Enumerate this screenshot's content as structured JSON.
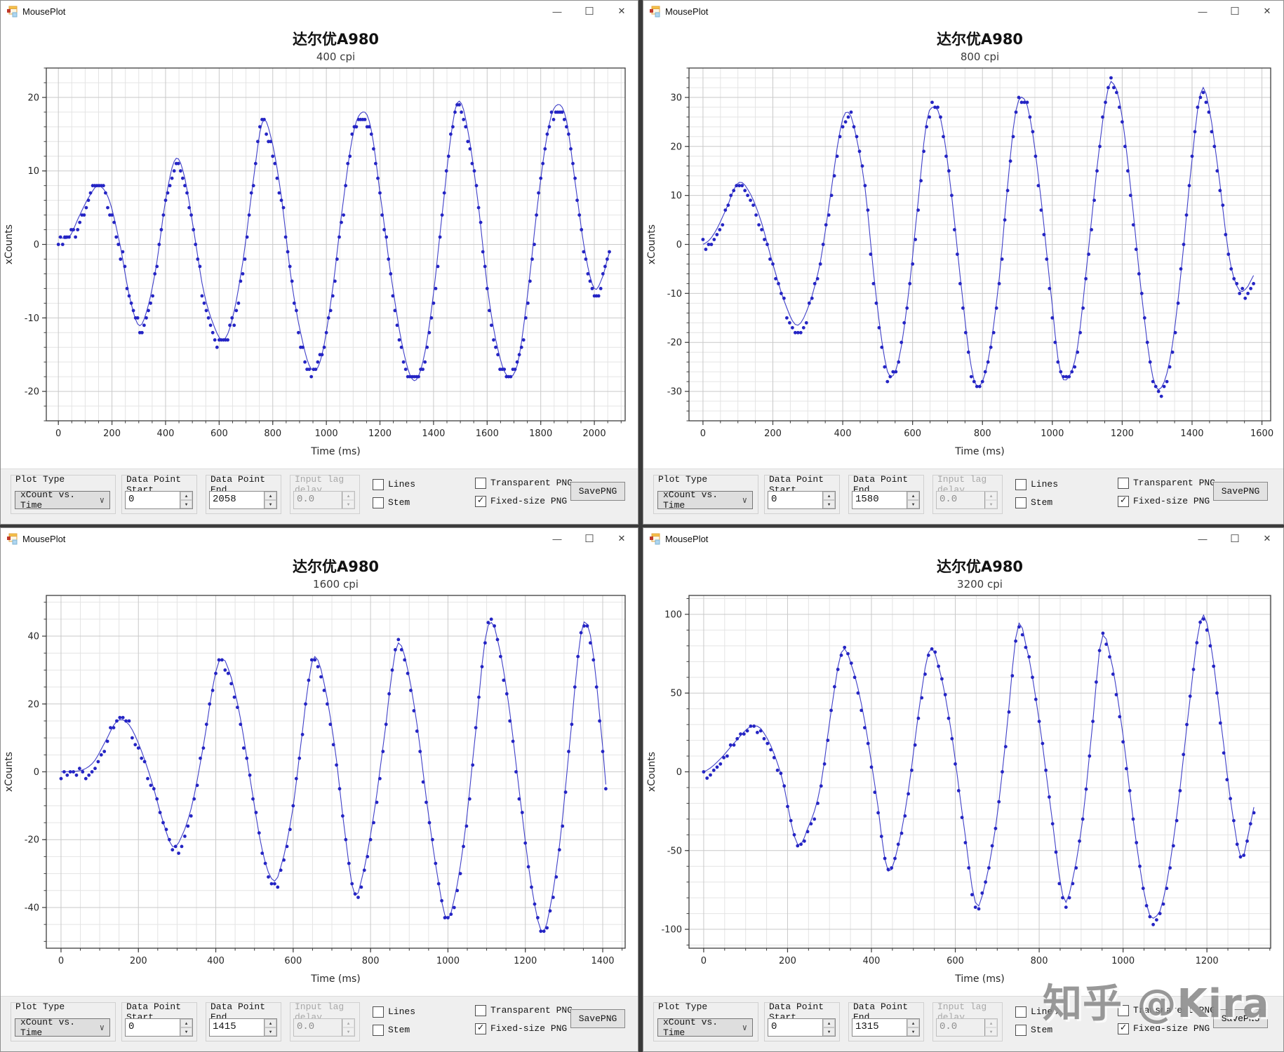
{
  "app": {
    "window_title": "MousePlot",
    "window_controls": {
      "minimize": "—",
      "maximize": "☐",
      "close": "✕"
    }
  },
  "glyphs": {
    "check": "✓",
    "chevron_down": "∨",
    "spin_up": "▲",
    "spin_down": "▼"
  },
  "colors": {
    "series_blue": "#2424c4",
    "line_blue": "#4040c8",
    "grid_major": "#c9c9c9",
    "grid_minor": "#e4e4e4",
    "frame": "#3d3d3d",
    "controlbar_bg": "#efefef"
  },
  "controls": {
    "plot_type": {
      "group_label": "Plot Type",
      "value": "xCount vs. Time"
    },
    "data_point_start": {
      "group_label_line1": "Data Point",
      "group_label_line2": "Start"
    },
    "data_point_end": {
      "group_label_line1": "Data Point",
      "group_label_line2": "End"
    },
    "input_lag": {
      "group_label_line1": "Input lag",
      "group_label_line2": "delay"
    },
    "checkboxes": {
      "lines": {
        "label": "Lines",
        "checked": false
      },
      "stem": {
        "label": "Stem",
        "checked": false
      },
      "transparent_png": {
        "label": "Transparent PNG",
        "checked": false
      },
      "fixed_size_png": {
        "label": "Fixed-size PNG",
        "checked": true
      }
    },
    "save_button": "SavePNG"
  },
  "watermark": {
    "text": "知乎 @Kira"
  },
  "windows": [
    {
      "title": "达尔优A980",
      "subtitle": "400 cpi",
      "data_point_start": "0",
      "data_point_end": "2058",
      "input_lag": "0.0"
    },
    {
      "title": "达尔优A980",
      "subtitle": "800 cpi",
      "data_point_start": "0",
      "data_point_end": "1580",
      "input_lag": "0.0"
    },
    {
      "title": "达尔优A980",
      "subtitle": "1600 cpi",
      "data_point_start": "0",
      "data_point_end": "1415",
      "input_lag": "0.0"
    },
    {
      "title": "达尔优A980",
      "subtitle": "3200 cpi",
      "data_point_start": "0",
      "data_point_end": "1315",
      "input_lag": "0.0"
    }
  ],
  "chart_data": [
    {
      "type": "line",
      "marker": "circle",
      "title": "达尔优A980",
      "subtitle": "400 cpi",
      "xlabel": "Time (ms)",
      "ylabel": "xCounts",
      "xlim": [
        -45,
        2115
      ],
      "ylim": [
        -24,
        24
      ],
      "xticks": [
        0,
        200,
        400,
        600,
        800,
        1000,
        1200,
        1400,
        1600,
        1800,
        2000
      ],
      "yticks": [
        -20,
        -10,
        0,
        10,
        20
      ],
      "x_minor_step": 50,
      "y_minor_step": 2,
      "sample_interval_ms": 8,
      "noise_amplitude": 0.55,
      "keypoints": [
        [
          0,
          1
        ],
        [
          40,
          1
        ],
        [
          80,
          4
        ],
        [
          115,
          6.5
        ],
        [
          150,
          8
        ],
        [
          190,
          6
        ],
        [
          230,
          0
        ],
        [
          265,
          -7
        ],
        [
          300,
          -11
        ],
        [
          330,
          -9
        ],
        [
          365,
          -3
        ],
        [
          400,
          6
        ],
        [
          435,
          11.5
        ],
        [
          465,
          10
        ],
        [
          500,
          3
        ],
        [
          540,
          -6
        ],
        [
          580,
          -11
        ],
        [
          615,
          -13
        ],
        [
          650,
          -10
        ],
        [
          690,
          -2
        ],
        [
          725,
          8
        ],
        [
          760,
          16.5
        ],
        [
          790,
          15
        ],
        [
          830,
          7
        ],
        [
          870,
          -5
        ],
        [
          910,
          -13
        ],
        [
          945,
          -17
        ],
        [
          980,
          -15.5
        ],
        [
          1020,
          -7
        ],
        [
          1060,
          5
        ],
        [
          1100,
          15
        ],
        [
          1135,
          18
        ],
        [
          1165,
          16
        ],
        [
          1200,
          7
        ],
        [
          1240,
          -4
        ],
        [
          1285,
          -14
        ],
        [
          1325,
          -18.5
        ],
        [
          1360,
          -16
        ],
        [
          1395,
          -8
        ],
        [
          1435,
          5
        ],
        [
          1470,
          16
        ],
        [
          1495,
          19.5
        ],
        [
          1525,
          16
        ],
        [
          1565,
          6
        ],
        [
          1605,
          -7
        ],
        [
          1645,
          -15
        ],
        [
          1680,
          -18
        ],
        [
          1715,
          -16
        ],
        [
          1750,
          -7
        ],
        [
          1790,
          6
        ],
        [
          1830,
          16
        ],
        [
          1862,
          19
        ],
        [
          1895,
          17
        ],
        [
          1930,
          8
        ],
        [
          1965,
          -1
        ],
        [
          2000,
          -6
        ],
        [
          2030,
          -4.5
        ],
        [
          2058,
          -1
        ]
      ]
    },
    {
      "type": "line",
      "marker": "circle",
      "title": "达尔优A980",
      "subtitle": "800 cpi",
      "xlabel": "Time (ms)",
      "ylabel": "xCounts",
      "xlim": [
        -40,
        1625
      ],
      "ylim": [
        -36,
        36
      ],
      "xticks": [
        0,
        200,
        400,
        600,
        800,
        1000,
        1200,
        1400,
        1600
      ],
      "yticks": [
        -30,
        -20,
        -10,
        0,
        10,
        20,
        30
      ],
      "x_minor_step": 50,
      "y_minor_step": 2,
      "sample_interval_ms": 8,
      "noise_amplitude": 0.7,
      "keypoints": [
        [
          0,
          0
        ],
        [
          30,
          2
        ],
        [
          65,
          7
        ],
        [
          100,
          12.5
        ],
        [
          130,
          11
        ],
        [
          165,
          5
        ],
        [
          200,
          -4
        ],
        [
          235,
          -12
        ],
        [
          268,
          -16.5
        ],
        [
          300,
          -13
        ],
        [
          335,
          -4
        ],
        [
          365,
          10
        ],
        [
          395,
          24
        ],
        [
          415,
          27
        ],
        [
          435,
          23
        ],
        [
          465,
          11
        ],
        [
          490,
          -7
        ],
        [
          515,
          -21
        ],
        [
          535,
          -27
        ],
        [
          562,
          -23
        ],
        [
          590,
          -9
        ],
        [
          618,
          10
        ],
        [
          640,
          25
        ],
        [
          660,
          28
        ],
        [
          682,
          25
        ],
        [
          710,
          11
        ],
        [
          740,
          -9
        ],
        [
          768,
          -25
        ],
        [
          790,
          -29
        ],
        [
          818,
          -23
        ],
        [
          848,
          -7
        ],
        [
          875,
          14
        ],
        [
          895,
          27
        ],
        [
          915,
          30
        ],
        [
          938,
          25
        ],
        [
          968,
          9
        ],
        [
          998,
          -11
        ],
        [
          1020,
          -25
        ],
        [
          1042,
          -27.5
        ],
        [
          1072,
          -21
        ],
        [
          1102,
          -2
        ],
        [
          1132,
          18
        ],
        [
          1158,
          31
        ],
        [
          1172,
          33
        ],
        [
          1195,
          28
        ],
        [
          1225,
          11
        ],
        [
          1255,
          -10
        ],
        [
          1285,
          -26
        ],
        [
          1308,
          -29.5
        ],
        [
          1338,
          -23
        ],
        [
          1368,
          -6
        ],
        [
          1398,
          16
        ],
        [
          1425,
          31
        ],
        [
          1445,
          29
        ],
        [
          1475,
          15
        ],
        [
          1505,
          -2
        ],
        [
          1532,
          -9
        ],
        [
          1555,
          -9
        ],
        [
          1580,
          -6
        ]
      ]
    },
    {
      "type": "line",
      "marker": "circle",
      "title": "达尔优A980",
      "subtitle": "1600 cpi",
      "xlabel": "Time (ms)",
      "ylabel": "xCounts",
      "xlim": [
        -38,
        1458
      ],
      "ylim": [
        -52,
        52
      ],
      "xticks": [
        0,
        200,
        400,
        600,
        800,
        1000,
        1200,
        1400
      ],
      "yticks": [
        -40,
        -20,
        0,
        20,
        40
      ],
      "x_minor_step": 50,
      "y_minor_step": 5,
      "sample_interval_ms": 8,
      "noise_amplitude": 0.9,
      "keypoints": [
        [
          0,
          0
        ],
        [
          55,
          0.5
        ],
        [
          85,
          3
        ],
        [
          115,
          9
        ],
        [
          145,
          15
        ],
        [
          175,
          14
        ],
        [
          205,
          7
        ],
        [
          235,
          -3
        ],
        [
          262,
          -14
        ],
        [
          288,
          -22
        ],
        [
          312,
          -19
        ],
        [
          340,
          -9
        ],
        [
          370,
          9
        ],
        [
          398,
          28
        ],
        [
          412,
          33
        ],
        [
          430,
          31
        ],
        [
          460,
          18
        ],
        [
          490,
          -3
        ],
        [
          520,
          -23
        ],
        [
          548,
          -32
        ],
        [
          568,
          -28
        ],
        [
          598,
          -12
        ],
        [
          622,
          10
        ],
        [
          642,
          28
        ],
        [
          656,
          34
        ],
        [
          678,
          27
        ],
        [
          708,
          7
        ],
        [
          735,
          -19
        ],
        [
          758,
          -36
        ],
        [
          778,
          -31
        ],
        [
          808,
          -13
        ],
        [
          838,
          12
        ],
        [
          858,
          31
        ],
        [
          872,
          38
        ],
        [
          892,
          32
        ],
        [
          920,
          14
        ],
        [
          948,
          -11
        ],
        [
          972,
          -30
        ],
        [
          995,
          -43
        ],
        [
          1015,
          -38
        ],
        [
          1045,
          -17
        ],
        [
          1075,
          15
        ],
        [
          1095,
          38
        ],
        [
          1110,
          44
        ],
        [
          1128,
          39
        ],
        [
          1158,
          19
        ],
        [
          1188,
          -9
        ],
        [
          1215,
          -33
        ],
        [
          1242,
          -47
        ],
        [
          1262,
          -41
        ],
        [
          1290,
          -20
        ],
        [
          1318,
          12
        ],
        [
          1342,
          39
        ],
        [
          1357,
          44
        ],
        [
          1375,
          35
        ],
        [
          1398,
          10
        ],
        [
          1415,
          -10.5
        ]
      ]
    },
    {
      "type": "line",
      "marker": "circle",
      "title": "达尔优A980",
      "subtitle": "3200 cpi",
      "xlabel": "Time (ms)",
      "ylabel": "xCounts",
      "xlim": [
        -35,
        1352
      ],
      "ylim": [
        -112,
        112
      ],
      "xticks": [
        0,
        200,
        400,
        600,
        800,
        1000,
        1200
      ],
      "yticks": [
        -100,
        -50,
        0,
        50,
        100
      ],
      "x_minor_step": 50,
      "y_minor_step": 10,
      "sample_interval_ms": 8,
      "noise_amplitude": 1.6,
      "keypoints": [
        [
          0,
          0
        ],
        [
          35,
          7
        ],
        [
          75,
          19
        ],
        [
          115,
          29
        ],
        [
          145,
          24
        ],
        [
          185,
          -2
        ],
        [
          222,
          -45
        ],
        [
          248,
          -36
        ],
        [
          278,
          -10
        ],
        [
          308,
          45
        ],
        [
          330,
          77
        ],
        [
          352,
          68
        ],
        [
          382,
          35
        ],
        [
          412,
          -15
        ],
        [
          438,
          -62
        ],
        [
          462,
          -49
        ],
        [
          488,
          -12
        ],
        [
          515,
          42
        ],
        [
          538,
          77
        ],
        [
          560,
          67
        ],
        [
          590,
          26
        ],
        [
          620,
          -33
        ],
        [
          648,
          -83
        ],
        [
          668,
          -74
        ],
        [
          698,
          -32
        ],
        [
          722,
          25
        ],
        [
          748,
          91
        ],
        [
          768,
          81
        ],
        [
          798,
          36
        ],
        [
          828,
          -24
        ],
        [
          858,
          -80
        ],
        [
          878,
          -70
        ],
        [
          905,
          -28
        ],
        [
          928,
          32
        ],
        [
          948,
          84
        ],
        [
          968,
          75
        ],
        [
          998,
          27
        ],
        [
          1028,
          -38
        ],
        [
          1058,
          -86
        ],
        [
          1078,
          -92
        ],
        [
          1098,
          -78
        ],
        [
          1128,
          -28
        ],
        [
          1158,
          42
        ],
        [
          1185,
          96
        ],
        [
          1205,
          87
        ],
        [
          1235,
          28
        ],
        [
          1262,
          -28
        ],
        [
          1283,
          -55
        ],
        [
          1300,
          -38
        ],
        [
          1315,
          -20
        ]
      ]
    }
  ]
}
